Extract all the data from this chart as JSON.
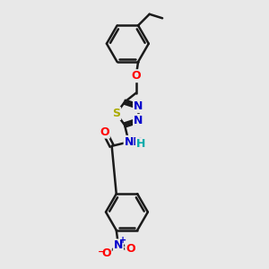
{
  "bg_color": "#e8e8e8",
  "bond_color": "#1a1a1a",
  "bond_width": 1.8,
  "atom_colors": {
    "O": "#ff0000",
    "N": "#0000cc",
    "S": "#aaaa00",
    "H": "#00aaaa",
    "C": "#1a1a1a"
  },
  "font_size": 8.5,
  "figsize": [
    3.0,
    3.0
  ],
  "dpi": 100
}
